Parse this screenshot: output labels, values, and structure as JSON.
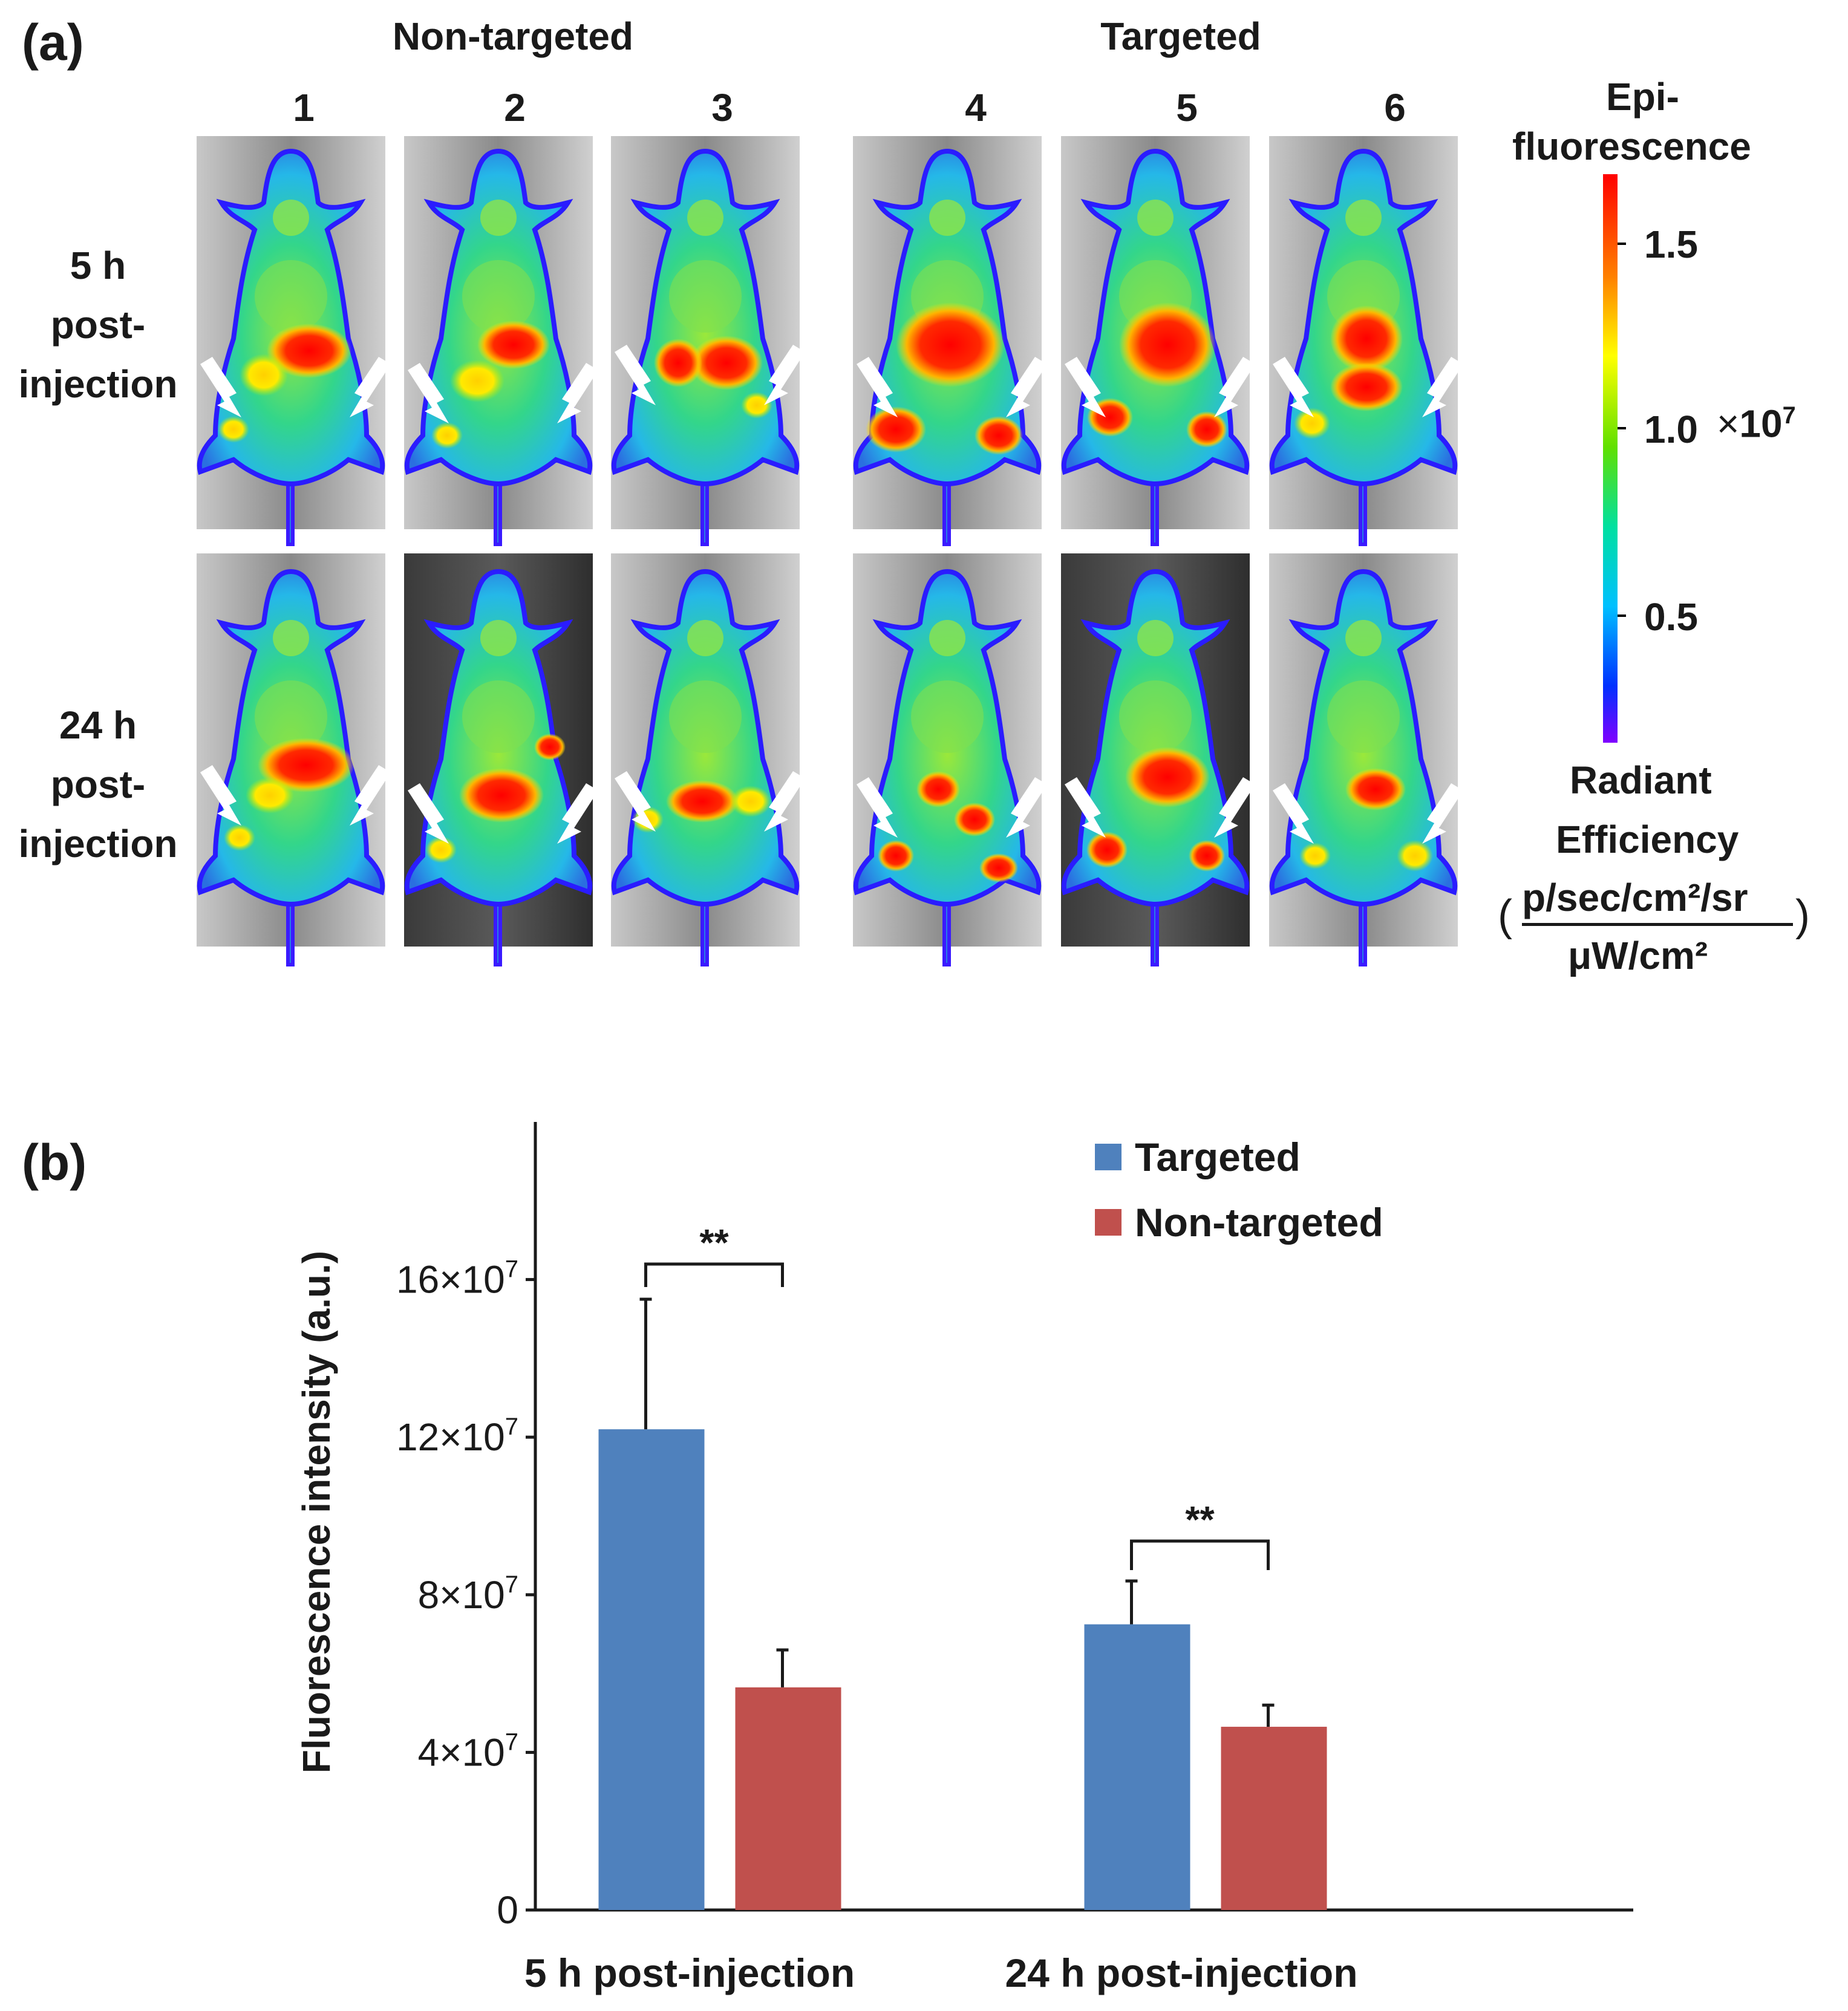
{
  "panel_a": {
    "label": "(a)",
    "group_left": "Non-targeted",
    "group_right": "Targeted",
    "columns": [
      "1",
      "2",
      "3",
      "4",
      "5",
      "6"
    ],
    "rows": [
      {
        "line1": "5 h",
        "line2": "post-",
        "line3": "injection"
      },
      {
        "line1": "24 h",
        "line2": "post-",
        "line3": "injection"
      }
    ],
    "colorbar": {
      "title_line1": "Epi-",
      "title_line2": "fluorescence",
      "ticks": [
        "1.5",
        "1.0",
        "0.5"
      ],
      "multiplier_x": "×",
      "multiplier_base": "10",
      "multiplier_exp": "7",
      "unit_line1": "Radiant",
      "unit_line2": "Efficiency",
      "unit_open": "(",
      "unit_numerator": "p/sec/cm²/sr",
      "unit_denominator": "μW/cm²",
      "unit_close": ")"
    }
  },
  "panel_b": {
    "label": "(b)"
  },
  "chart_data": {
    "type": "bar",
    "title": "",
    "xlabel": "",
    "ylabel": "Fluorescence intensity (a.u.)",
    "categories": [
      "5 h post-injection",
      "24 h post-injection"
    ],
    "series": [
      {
        "name": "Targeted",
        "values": [
          122000000,
          72500000
        ],
        "errors": [
          33000000,
          11000000
        ],
        "color": "#4f81bd"
      },
      {
        "name": "Non-targeted",
        "values": [
          56500000,
          46500000
        ],
        "errors": [
          9500000,
          5500000
        ],
        "color": "#c0504d"
      }
    ],
    "ylim": [
      0,
      200000000
    ],
    "yticks": [
      0,
      40000000,
      80000000,
      120000000,
      160000000
    ],
    "ytick_labels": [
      {
        "value": 0,
        "mantissa": "0",
        "times": "",
        "base": "",
        "exp": ""
      },
      {
        "value": 40000000,
        "mantissa": "4",
        "times": "×",
        "base": "10",
        "exp": "7"
      },
      {
        "value": 80000000,
        "mantissa": "8",
        "times": "×",
        "base": "10",
        "exp": "7"
      },
      {
        "value": 120000000,
        "mantissa": "12",
        "times": "×",
        "base": "10",
        "exp": "7"
      },
      {
        "value": 160000000,
        "mantissa": "16",
        "times": "×",
        "base": "10",
        "exp": "7"
      }
    ],
    "significance": [
      {
        "category_index": 0,
        "label": "**"
      },
      {
        "category_index": 1,
        "label": "**"
      }
    ],
    "legend_position": "top-right",
    "grid": false
  }
}
